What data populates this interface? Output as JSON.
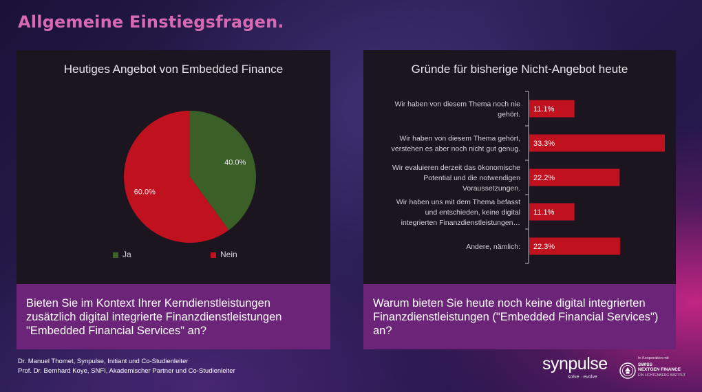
{
  "page": {
    "title": "Allgemeine Einstiegsfragen."
  },
  "chart_data": [
    {
      "type": "pie",
      "title": "Heutiges Angebot von Embedded Finance",
      "categories": [
        "Ja",
        "Nein"
      ],
      "values": [
        40.0,
        60.0
      ],
      "value_labels": [
        "40.0%",
        "60.0%"
      ],
      "colors": [
        "#3a5f27",
        "#c0111f"
      ],
      "legend": "bottom"
    },
    {
      "type": "bar",
      "orientation": "horizontal",
      "title": "Gründe für bisherige Nicht-Angebot heute",
      "categories": [
        [
          "Wir haben von diesem Thema noch nie",
          "gehört."
        ],
        [
          "Wir haben von diesem Thema gehört,",
          "verstehen es aber noch nicht gut genug."
        ],
        [
          "Wir evaluieren derzeit das ökonomische",
          "Potential und die notwendigen",
          "Voraussetzungen."
        ],
        [
          "Wir haben uns mit dem Thema befasst",
          "und entschieden, keine digital",
          "integrierten Finanzdienstleistungen…"
        ],
        [
          "Andere, nämlich:"
        ]
      ],
      "values": [
        11.1,
        33.3,
        22.2,
        11.1,
        22.3
      ],
      "value_labels": [
        "11.1%",
        "33.3%",
        "22.2%",
        "11.1%",
        "22.3%"
      ],
      "bar_color": "#c0111f",
      "xlim": [
        0,
        33.3
      ]
    }
  ],
  "questions": {
    "left": "Bieten Sie im Kontext Ihrer Kerndienstleistungen zusätzlich digital integrierte Finanzdienstleistungen \"Embedded Financial Services\" an?",
    "right": "Warum bieten Sie heute noch keine digital integrierten Finanzdienstleistungen (\"Embedded Financial Services\") an?"
  },
  "footer": {
    "line1": "Dr. Manuel Thomet, Synpulse, Initiant und Co-Studienleiter",
    "line2": "Prof. Dr. Bernhard Koye, SNFI, Akademischer Partner und Co-Studienleiter"
  },
  "branding": {
    "name": "synpulse",
    "tagline": "solve · evolve",
    "partner_kicker": "In Kooperation mit",
    "partner_name_line1": "SWISS",
    "partner_name_line2": "NEXTGEN FINANCE",
    "partner_tagline": "EIN LICHTENBERG INSTITUT"
  }
}
